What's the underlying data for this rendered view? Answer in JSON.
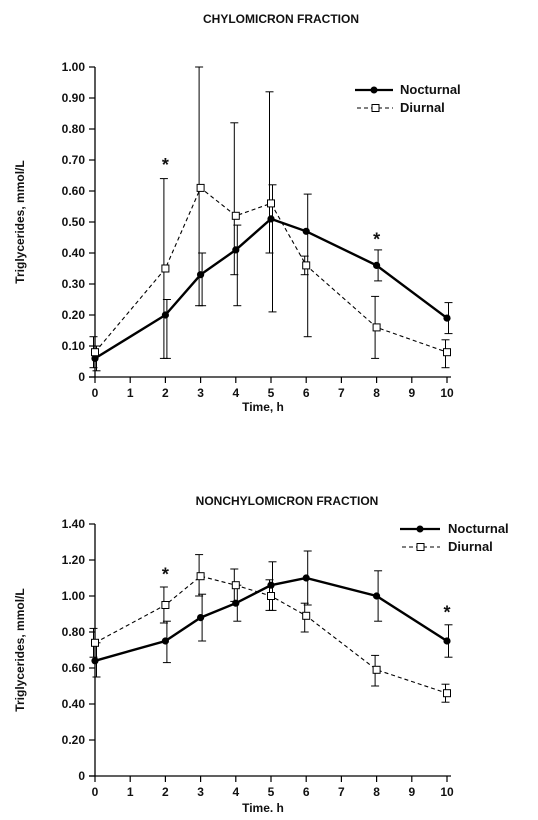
{
  "chart_data": [
    {
      "type": "line",
      "title": "CHYLOMICRON FRACTION",
      "xlabel": "Time, h",
      "ylabel": "Triglycerides, mmol/L",
      "x": [
        0,
        2,
        3,
        4,
        5,
        6,
        8,
        10
      ],
      "xticks": [
        "0",
        "1",
        "2",
        "3",
        "4",
        "5",
        "6",
        "7",
        "8",
        "9",
        "10"
      ],
      "yticks": [
        "0",
        "0.10",
        "0.20",
        "0.30",
        "0.40",
        "0.50",
        "0.60",
        "0.70",
        "0.80",
        "0.90",
        "1.00"
      ],
      "xlim": [
        0,
        10
      ],
      "ylim": [
        0,
        1.0
      ],
      "series": [
        {
          "name": "Nocturnal",
          "style": "solid-filled-circle",
          "color": "#000000",
          "x": [
            0,
            2,
            3,
            4,
            5,
            6,
            8,
            10
          ],
          "values": [
            0.06,
            0.2,
            0.33,
            0.41,
            0.51,
            0.47,
            0.36,
            0.19
          ],
          "err_low": [
            0.02,
            0.06,
            0.23,
            0.23,
            0.21,
            0.13,
            0.31,
            0.14
          ],
          "err_high": [
            0.1,
            0.25,
            0.4,
            0.49,
            0.62,
            0.59,
            0.41,
            0.24
          ]
        },
        {
          "name": "Diurnal",
          "style": "dashed-open-square",
          "color": "#000000",
          "x": [
            0,
            2,
            3,
            4,
            5,
            6,
            8,
            10
          ],
          "values": [
            0.08,
            0.35,
            0.61,
            0.52,
            0.56,
            0.36,
            0.16,
            0.08
          ],
          "err_low": [
            0.03,
            0.06,
            0.23,
            0.33,
            0.4,
            0.33,
            0.06,
            0.03
          ],
          "err_high": [
            0.13,
            0.64,
            1.0,
            0.82,
            0.92,
            0.39,
            0.26,
            0.12
          ]
        }
      ],
      "significance": [
        {
          "x": 2,
          "y": 0.69,
          "label": "*"
        },
        {
          "x": 8,
          "y": 0.45,
          "label": "*"
        }
      ],
      "legend": {
        "position": "top-right"
      }
    },
    {
      "type": "line",
      "title": "NONCHYLOMICRON FRACTION",
      "xlabel": "Time. h",
      "ylabel": "Triglycerides, mmol/L",
      "x": [
        0,
        2,
        3,
        4,
        5,
        6,
        8,
        10
      ],
      "xticks": [
        "0",
        "1",
        "2",
        "3",
        "4",
        "5",
        "6",
        "7",
        "8",
        "9",
        "10"
      ],
      "yticks": [
        "0",
        "0.20",
        "0.40",
        "0.60",
        "0.80",
        "1.00",
        "1.20",
        "1.40"
      ],
      "xlim": [
        0,
        10
      ],
      "ylim": [
        0,
        1.4
      ],
      "series": [
        {
          "name": "Nocturnal",
          "style": "solid-filled-circle",
          "color": "#000000",
          "x": [
            0,
            2,
            3,
            4,
            5,
            6,
            8,
            10
          ],
          "values": [
            0.64,
            0.75,
            0.88,
            0.96,
            1.06,
            1.1,
            1.0,
            0.75
          ],
          "err_low": [
            0.55,
            0.63,
            0.75,
            0.86,
            0.92,
            0.95,
            0.86,
            0.66
          ],
          "err_high": [
            0.74,
            0.86,
            1.01,
            1.06,
            1.19,
            1.25,
            1.14,
            0.84
          ]
        },
        {
          "name": "Diurnal",
          "style": "dashed-open-square",
          "color": "#000000",
          "x": [
            0,
            2,
            3,
            4,
            5,
            6,
            8,
            10
          ],
          "values": [
            0.74,
            0.95,
            1.11,
            1.06,
            1.0,
            0.89,
            0.59,
            0.46
          ],
          "err_low": [
            0.66,
            0.85,
            1.0,
            0.97,
            0.92,
            0.8,
            0.5,
            0.41
          ],
          "err_high": [
            0.82,
            1.05,
            1.23,
            1.15,
            1.09,
            0.96,
            0.67,
            0.51
          ]
        }
      ],
      "significance": [
        {
          "x": 2,
          "y": 1.13,
          "label": "*"
        },
        {
          "x": 10,
          "y": 0.92,
          "label": "*"
        }
      ],
      "legend": {
        "position": "top-right"
      }
    }
  ]
}
